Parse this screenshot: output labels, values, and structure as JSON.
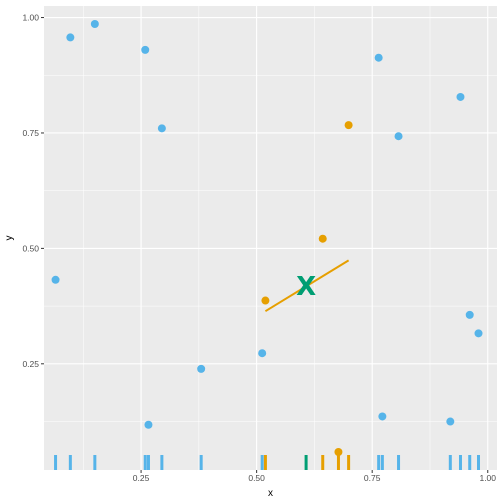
{
  "chart_data": {
    "type": "scatter",
    "title": "",
    "xlabel": "x",
    "ylabel": "y",
    "xlim": [
      0.04,
      1.02
    ],
    "ylim": [
      0.02,
      1.025
    ],
    "grid": true,
    "x_ticks": [
      0.25,
      0.5,
      0.75,
      1.0
    ],
    "x_tick_labels": [
      "0.25",
      "0.50",
      "0.75",
      "1.00"
    ],
    "y_ticks": [
      0.25,
      0.5,
      0.75,
      1.0
    ],
    "y_tick_labels": [
      "0.25",
      "0.50",
      "0.75",
      "1.00"
    ],
    "colors": {
      "panel": "#ebebeb",
      "grid": "#ffffff",
      "blue": "#56b4e9",
      "orange": "#e69f00",
      "green": "#009e73"
    },
    "series": [
      {
        "color_key": "blue",
        "points": [
          {
            "x": 0.065,
            "y": 0.432
          },
          {
            "x": 0.097,
            "y": 0.957
          },
          {
            "x": 0.15,
            "y": 0.986
          },
          {
            "x": 0.259,
            "y": 0.93
          },
          {
            "x": 0.266,
            "y": 0.118
          },
          {
            "x": 0.295,
            "y": 0.76
          },
          {
            "x": 0.38,
            "y": 0.239
          },
          {
            "x": 0.512,
            "y": 0.273
          },
          {
            "x": 0.764,
            "y": 0.913
          },
          {
            "x": 0.772,
            "y": 0.136
          },
          {
            "x": 0.807,
            "y": 0.743
          },
          {
            "x": 0.919,
            "y": 0.125
          },
          {
            "x": 0.941,
            "y": 0.828
          },
          {
            "x": 0.961,
            "y": 0.356
          },
          {
            "x": 0.98,
            "y": 0.316
          }
        ]
      },
      {
        "color_key": "orange",
        "points": [
          {
            "x": 0.519,
            "y": 0.387
          },
          {
            "x": 0.643,
            "y": 0.521
          },
          {
            "x": 0.677,
            "y": 0.059
          },
          {
            "x": 0.699,
            "y": 0.767
          }
        ]
      }
    ],
    "segment": {
      "color_key": "orange",
      "x1": 0.519,
      "y1": 0.364,
      "x2": 0.699,
      "y2": 0.474
    },
    "centroid": {
      "color_key": "green",
      "x": 0.607,
      "y": 0.418,
      "label": "X"
    },
    "rug": [
      {
        "x": 0.065,
        "color_key": "blue"
      },
      {
        "x": 0.097,
        "color_key": "blue"
      },
      {
        "x": 0.15,
        "color_key": "blue"
      },
      {
        "x": 0.259,
        "color_key": "blue"
      },
      {
        "x": 0.266,
        "color_key": "blue"
      },
      {
        "x": 0.295,
        "color_key": "blue"
      },
      {
        "x": 0.38,
        "color_key": "blue"
      },
      {
        "x": 0.512,
        "color_key": "blue"
      },
      {
        "x": 0.519,
        "color_key": "orange"
      },
      {
        "x": 0.607,
        "color_key": "green"
      },
      {
        "x": 0.643,
        "color_key": "orange"
      },
      {
        "x": 0.677,
        "color_key": "orange"
      },
      {
        "x": 0.699,
        "color_key": "orange"
      },
      {
        "x": 0.764,
        "color_key": "blue"
      },
      {
        "x": 0.772,
        "color_key": "blue"
      },
      {
        "x": 0.807,
        "color_key": "blue"
      },
      {
        "x": 0.919,
        "color_key": "blue"
      },
      {
        "x": 0.941,
        "color_key": "blue"
      },
      {
        "x": 0.961,
        "color_key": "blue"
      },
      {
        "x": 0.98,
        "color_key": "blue"
      }
    ]
  }
}
